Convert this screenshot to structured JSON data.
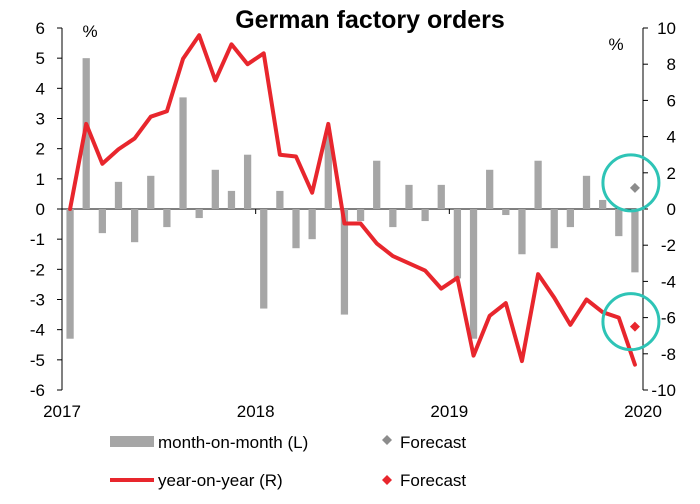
{
  "chart_data": {
    "type": "bar+line",
    "title": "German factory orders",
    "left_axis": {
      "unit": "%",
      "min": -6,
      "max": 6,
      "ticks": [
        6,
        5,
        4,
        3,
        2,
        1,
        0,
        -1,
        -2,
        -3,
        -4,
        -5,
        -6
      ]
    },
    "right_axis": {
      "unit": "%",
      "min": -10,
      "max": 10,
      "ticks": [
        10,
        8,
        6,
        4,
        2,
        0,
        -2,
        -4,
        -6,
        -8,
        -10
      ]
    },
    "x_labels": [
      "2017",
      "2018",
      "2019",
      "2020"
    ],
    "x": [
      "2017-01",
      "2017-02",
      "2017-03",
      "2017-04",
      "2017-05",
      "2017-06",
      "2017-07",
      "2017-08",
      "2017-09",
      "2017-10",
      "2017-11",
      "2017-12",
      "2018-01",
      "2018-02",
      "2018-03",
      "2018-04",
      "2018-05",
      "2018-06",
      "2018-07",
      "2018-08",
      "2018-09",
      "2018-10",
      "2018-11",
      "2018-12",
      "2019-01",
      "2019-02",
      "2019-03",
      "2019-04",
      "2019-05",
      "2019-06",
      "2019-07",
      "2019-08",
      "2019-09",
      "2019-10",
      "2019-11",
      "2019-12"
    ],
    "series": [
      {
        "name": "month-on-month (L)",
        "axis": "left",
        "kind": "bar",
        "color": "#a6a6a6",
        "values": [
          -4.3,
          5.0,
          -0.8,
          0.9,
          -1.1,
          1.1,
          -0.6,
          3.7,
          -0.3,
          1.3,
          0.6,
          1.8,
          -3.3,
          0.6,
          -1.3,
          -1.0,
          2.5,
          -3.5,
          -0.4,
          1.6,
          -0.6,
          0.8,
          -0.4,
          0.8,
          -2.3,
          -4.3,
          1.3,
          -0.2,
          -1.5,
          1.6,
          -1.3,
          -0.6,
          1.1,
          0.3,
          -0.9,
          -2.1
        ]
      },
      {
        "name": "year-on-year (R)",
        "axis": "right",
        "kind": "line",
        "color": "#e8262d",
        "values": [
          0.0,
          4.7,
          2.5,
          3.3,
          3.9,
          5.1,
          5.4,
          8.3,
          9.6,
          7.1,
          9.1,
          8.0,
          8.6,
          3.0,
          2.9,
          0.9,
          4.7,
          -0.8,
          -0.8,
          -1.9,
          -2.6,
          -3.0,
          -3.4,
          -4.4,
          -3.8,
          -8.1,
          -5.9,
          -5.2,
          -8.4,
          -3.6,
          -4.9,
          -6.4,
          -5.0,
          -5.7,
          -6.0,
          -8.6
        ]
      }
    ],
    "forecast": [
      {
        "name": "Forecast",
        "series": "month-on-month (L)",
        "x": "2019-12",
        "value": 0.7,
        "color": "#8c8c8c"
      },
      {
        "name": "Forecast",
        "series": "year-on-year (R)",
        "x": "2019-12",
        "value": -6.5,
        "color": "#e8262d"
      }
    ],
    "highlight_color": "#2ec4b6",
    "legend": {
      "position": "bottom",
      "items": [
        "month-on-month (L)",
        "Forecast",
        "year-on-year (R)",
        "Forecast"
      ]
    }
  }
}
